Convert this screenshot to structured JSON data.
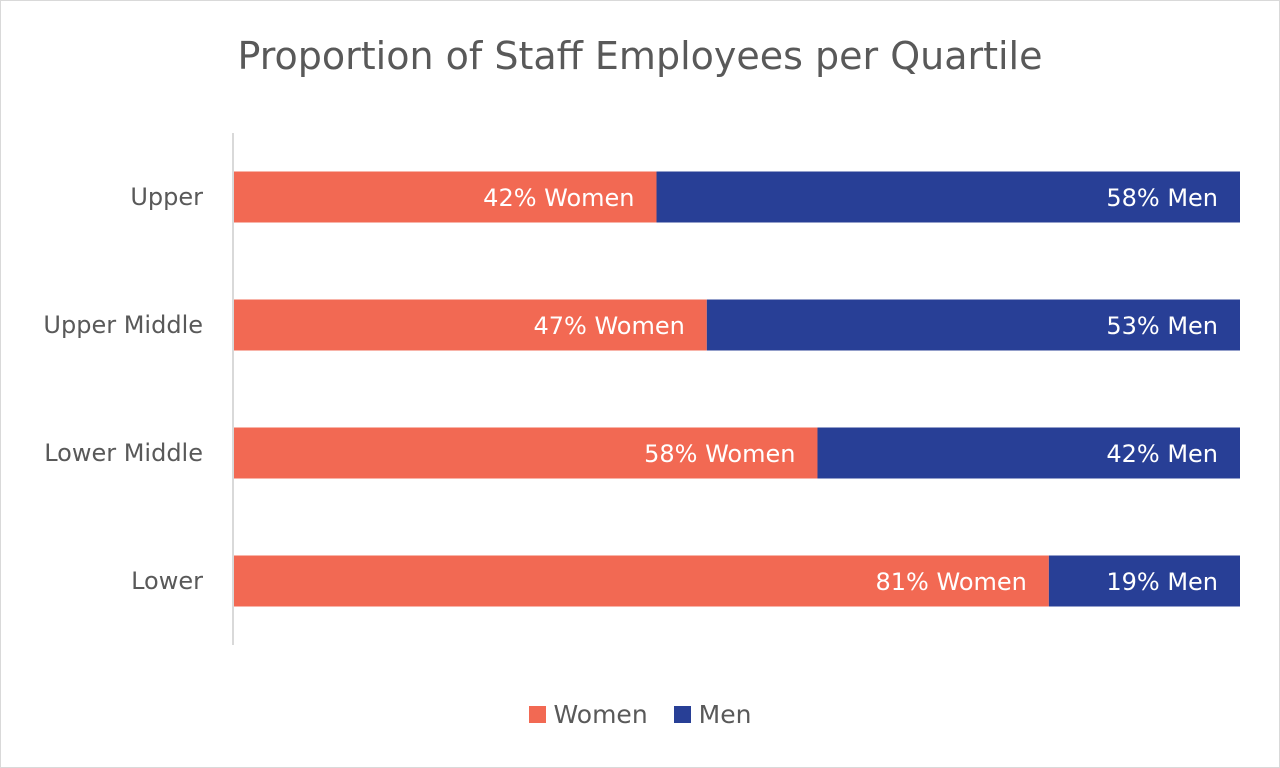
{
  "chart_data": {
    "type": "bar",
    "orientation": "horizontal",
    "stacked": "100%",
    "title": "Proportion of Staff Employees per Quartile",
    "categories": [
      "Upper",
      "Upper Middle",
      "Lower Middle",
      "Lower"
    ],
    "series": [
      {
        "name": "Women",
        "color": "#f26953",
        "values": [
          42,
          47,
          58,
          81
        ],
        "labels": [
          "42% Women",
          "47% Women",
          "58% Women",
          "81% Women"
        ]
      },
      {
        "name": "Men",
        "color": "#283f96",
        "values": [
          58,
          53,
          42,
          19
        ],
        "labels": [
          "58% Men",
          "53% Men",
          "42% Men",
          "19% Men"
        ]
      }
    ],
    "xlim": [
      0,
      100
    ],
    "grid": false,
    "legend": "bottom"
  }
}
